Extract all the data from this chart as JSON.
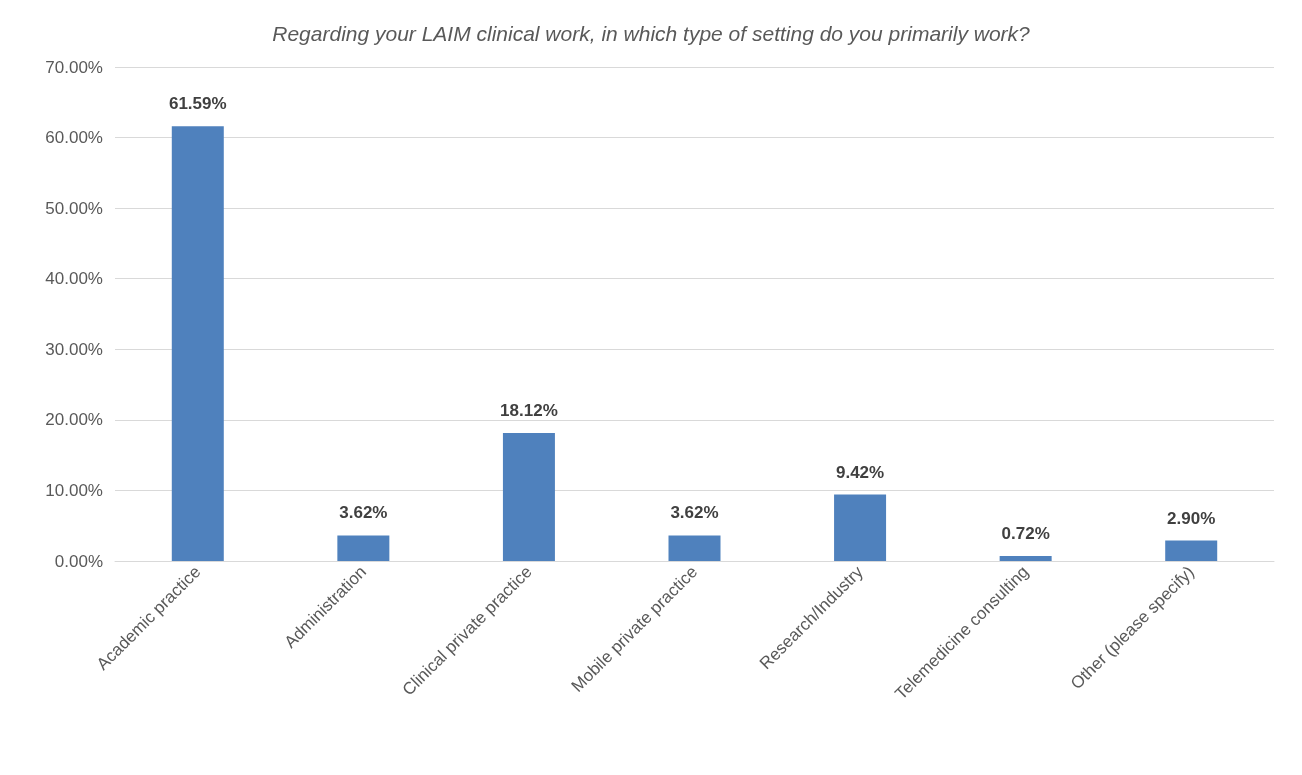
{
  "chart_data": {
    "type": "bar",
    "title": "Regarding your LAIM clinical work, in which type of setting do you primarily work?",
    "categories": [
      "Academic practice",
      "Administration",
      "Clinical private practice",
      "Mobile private practice",
      "Research/Industry",
      "Telemedicine consulting",
      "Other (please specify)"
    ],
    "values": [
      61.59,
      3.62,
      18.12,
      3.62,
      9.42,
      0.72,
      2.9
    ],
    "value_labels": [
      "61.59%",
      "3.62%",
      "18.12%",
      "3.62%",
      "9.42%",
      "0.72%",
      "2.90%"
    ],
    "color": "#4f81bd",
    "ylim": [
      0,
      70
    ],
    "yticks": [
      {
        "value": 0,
        "label": "0.00%"
      },
      {
        "value": 10,
        "label": "10.00%"
      },
      {
        "value": 20,
        "label": "20.00%"
      },
      {
        "value": 30,
        "label": "30.00%"
      },
      {
        "value": 40,
        "label": "40.00%"
      },
      {
        "value": 50,
        "label": "50.00%"
      },
      {
        "value": 60,
        "label": "60.00%"
      },
      {
        "value": 70,
        "label": "70.00%"
      }
    ],
    "grid": "y"
  }
}
